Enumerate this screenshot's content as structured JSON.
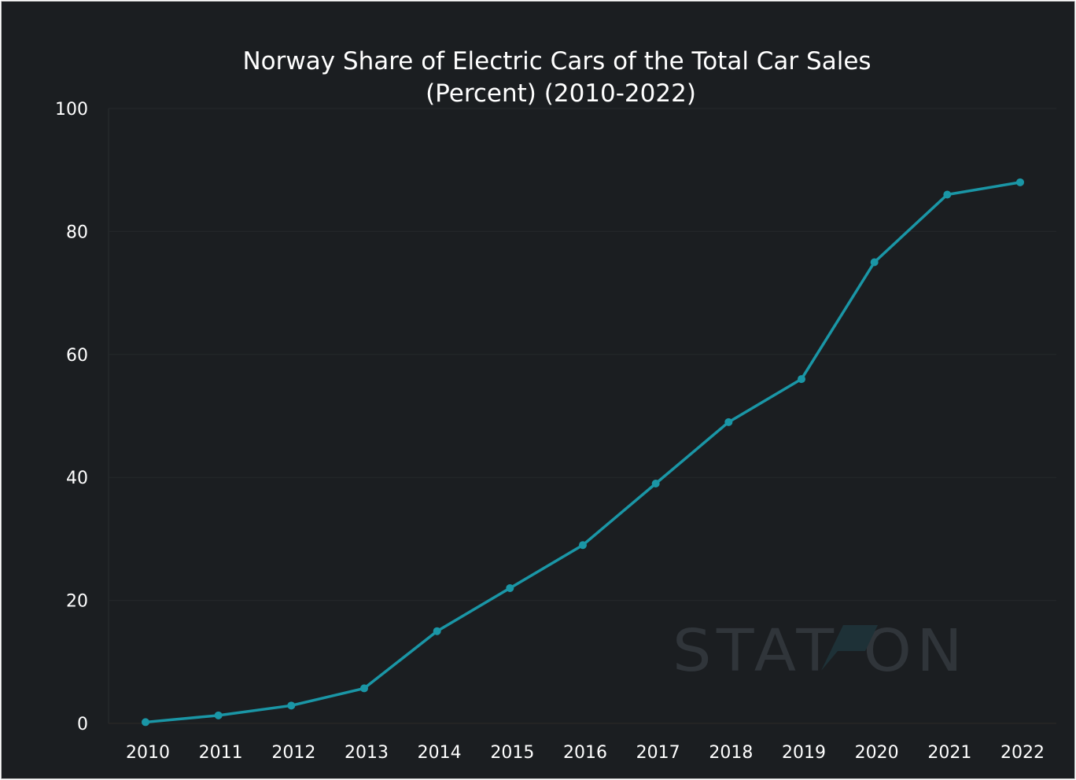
{
  "chart_data": {
    "type": "line",
    "title": "Norway Share of Electric Cars of the Total Car Sales",
    "subtitle": "(Percent) (2010-2022)",
    "xlabel": "",
    "ylabel": "",
    "categories": [
      "2010",
      "2011",
      "2012",
      "2013",
      "2014",
      "2015",
      "2016",
      "2017",
      "2018",
      "2019",
      "2020",
      "2021",
      "2022"
    ],
    "series": [
      {
        "values": [
          0.2,
          1.3,
          2.9,
          5.7,
          15.0,
          22.0,
          29.0,
          39.0,
          49.0,
          56.0,
          75.0,
          86.0,
          88.0
        ],
        "color": "#1a96a6"
      }
    ],
    "ylim": [
      0,
      100
    ],
    "yticks": [
      "0",
      "20",
      "40",
      "60",
      "80",
      "100"
    ],
    "grid": true,
    "legend": "none",
    "background": "#1b1e21",
    "watermark": "STATZON"
  }
}
